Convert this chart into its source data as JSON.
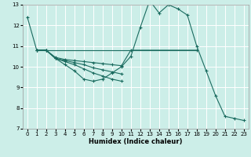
{
  "title": "",
  "xlabel": "Humidex (Indice chaleur)",
  "bg_color": "#cceee8",
  "line_color": "#1a6b5f",
  "grid_color": "#ffffff",
  "xlim": [
    -0.5,
    23.5
  ],
  "ylim": [
    7,
    13
  ],
  "xticks": [
    0,
    1,
    2,
    3,
    4,
    5,
    6,
    7,
    8,
    9,
    10,
    11,
    12,
    13,
    14,
    15,
    16,
    17,
    18,
    19,
    20,
    21,
    22,
    23
  ],
  "yticks": [
    7,
    8,
    9,
    10,
    11,
    12,
    13
  ],
  "series1_x": [
    0,
    1,
    2,
    3,
    4,
    5,
    6,
    7,
    8,
    9,
    10,
    11,
    12,
    13,
    14,
    15,
    16,
    17,
    18,
    19,
    20,
    21,
    22,
    23
  ],
  "series1_y": [
    12.4,
    10.8,
    10.8,
    10.4,
    10.1,
    9.8,
    9.4,
    9.3,
    9.4,
    9.7,
    10.0,
    10.5,
    11.9,
    13.2,
    12.6,
    13.0,
    12.8,
    12.5,
    11.0,
    9.8,
    8.6,
    7.6,
    7.5,
    7.4
  ],
  "series2_x": [
    1,
    2,
    3,
    4,
    5,
    6,
    7,
    8,
    9,
    10,
    11,
    18
  ],
  "series2_y": [
    10.8,
    10.8,
    10.45,
    10.35,
    10.3,
    10.25,
    10.2,
    10.15,
    10.1,
    10.05,
    10.8,
    10.8
  ],
  "series3_x": [
    1,
    2,
    3,
    4,
    5,
    6,
    7,
    8,
    9,
    10
  ],
  "series3_y": [
    10.8,
    10.8,
    10.4,
    10.3,
    10.2,
    10.1,
    9.95,
    9.85,
    9.75,
    9.65
  ],
  "series4_x": [
    1,
    2,
    3,
    4,
    5,
    6,
    7,
    8,
    9,
    10
  ],
  "series4_y": [
    10.8,
    10.8,
    10.4,
    10.25,
    10.1,
    9.9,
    9.7,
    9.55,
    9.4,
    9.3
  ],
  "hline_y": 10.8,
  "hline_x1": 1,
  "hline_x2": 18
}
